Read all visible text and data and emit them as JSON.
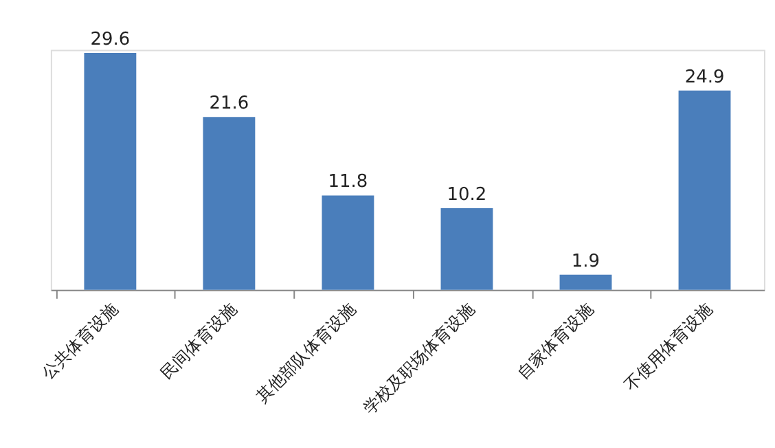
{
  "chart_data": {
    "type": "bar",
    "categories": [
      "公共体育设施",
      "民间体育设施",
      "其他部队体育设施",
      "学校及职场体育设施",
      "自家体育设施",
      "不使用体育设施"
    ],
    "values": [
      29.6,
      21.6,
      11.8,
      10.2,
      1.9,
      24.9
    ],
    "color": "#4a7ebb",
    "data_labels": true
  }
}
